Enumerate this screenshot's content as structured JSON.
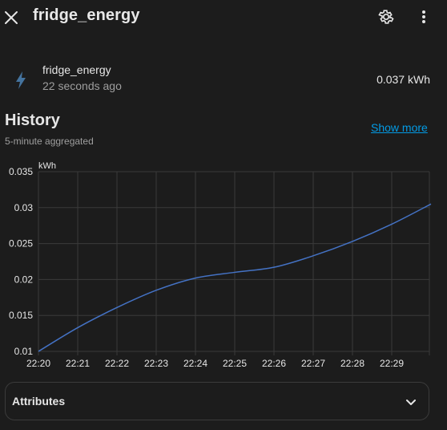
{
  "dialog": {
    "title": "fridge_energy"
  },
  "entity": {
    "name": "fridge_energy",
    "last_changed": "22 seconds ago",
    "state": "0.037 kWh",
    "icon": "lightning-bolt-icon"
  },
  "history": {
    "title": "History",
    "subtitle": "5-minute aggregated",
    "show_more": "Show more"
  },
  "attributes": {
    "label": "Attributes"
  },
  "colors": {
    "background": "#1c1c1c",
    "accent": "#039be5",
    "series": "#4472c4",
    "grid": "#3a3a3a"
  },
  "chart_data": {
    "type": "line",
    "unit_label": "kWh",
    "x_ticks": [
      "22:20",
      "22:21",
      "22:22",
      "22:23",
      "22:24",
      "22:25",
      "22:26",
      "22:27",
      "22:28",
      "22:29"
    ],
    "y_ticks": [
      "0.035",
      "0.03",
      "0.025",
      "0.02",
      "0.015",
      "0.01"
    ],
    "ylim": [
      0.01,
      0.035
    ],
    "grid": true,
    "series": [
      {
        "x": [
          "22:20",
          "22:21",
          "22:22",
          "22:23",
          "22:24",
          "22:25",
          "22:26",
          "22:27",
          "22:28",
          "22:29",
          "22:30"
        ],
        "values": [
          0.01,
          0.0133,
          0.0161,
          0.0185,
          0.0202,
          0.021,
          0.0217,
          0.0233,
          0.0253,
          0.0277,
          0.0305
        ]
      }
    ]
  }
}
